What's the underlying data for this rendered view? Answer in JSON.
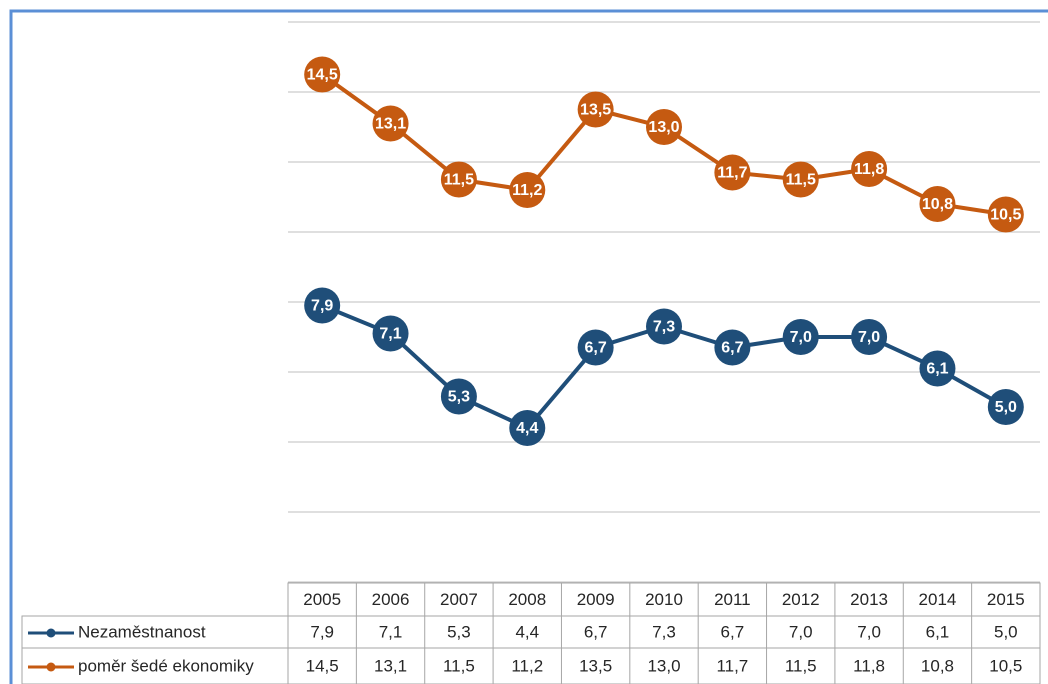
{
  "chart_data": {
    "type": "line",
    "categories": [
      "2005",
      "2006",
      "2007",
      "2008",
      "2009",
      "2010",
      "2011",
      "2012",
      "2013",
      "2014",
      "2015"
    ],
    "ylim": [
      0,
      16
    ],
    "yticks": [
      0,
      2,
      4,
      6,
      8,
      10,
      12,
      14,
      16
    ],
    "grid": true,
    "series": [
      {
        "name": "Nezaměstnanost",
        "color": "#1f4e79",
        "values": [
          7.9,
          7.1,
          5.3,
          4.4,
          6.7,
          7.3,
          6.7,
          7.0,
          7.0,
          6.1,
          5.0
        ],
        "value_labels": [
          "7,9",
          "7,1",
          "5,3",
          "4,4",
          "6,7",
          "7,3",
          "6,7",
          "7,0",
          "7,0",
          "6,1",
          "5,0"
        ]
      },
      {
        "name": "poměr šedé ekonomiky",
        "color": "#c55a11",
        "values": [
          14.5,
          13.1,
          11.5,
          11.2,
          13.5,
          13.0,
          11.7,
          11.5,
          11.8,
          10.8,
          10.5
        ],
        "value_labels": [
          "14,5",
          "13,1",
          "11,5",
          "11,2",
          "13,5",
          "13,0",
          "11,7",
          "11,5",
          "11,8",
          "10,8",
          "10,5"
        ]
      }
    ]
  }
}
